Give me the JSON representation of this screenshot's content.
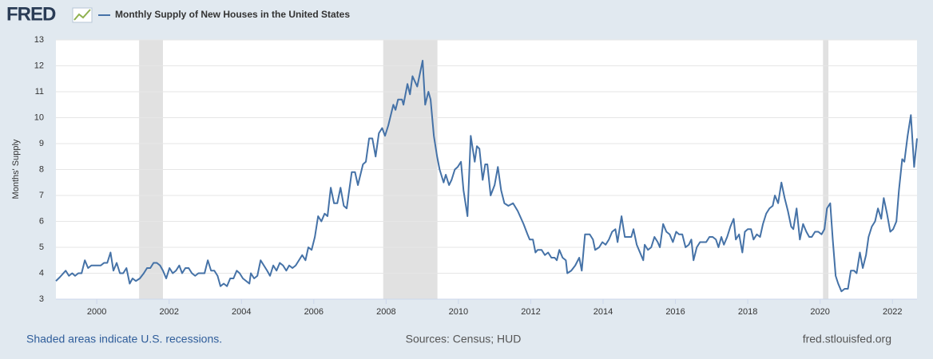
{
  "chart_data": {
    "type": "line",
    "logo": "FRED",
    "y_label": "Months' Supply",
    "note": "Shaded areas indicate U.S. recessions.",
    "source": "Sources: Census; HUD",
    "site": "fred.stlouisfed.org",
    "xlim": [
      1998.87,
      2022.68
    ],
    "xticks": [
      2000,
      2002,
      2004,
      2006,
      2008,
      2010,
      2012,
      2014,
      2016,
      2018,
      2020,
      2022
    ],
    "ylim": [
      3,
      13
    ],
    "yticks": [
      3,
      4,
      5,
      6,
      7,
      8,
      9,
      10,
      11,
      12,
      13
    ],
    "grid": true,
    "recessions": [
      [
        2001.17,
        2001.83
      ],
      [
        2007.92,
        2009.42
      ],
      [
        2020.08,
        2020.23
      ]
    ],
    "recession_color": "#e1e1e1",
    "series": [
      {
        "name": "Monthly Supply of New Houses in the United States",
        "color": "#4572a7",
        "x": [
          1998.87,
          1998.98,
          1999.14,
          1999.23,
          1999.32,
          1999.4,
          1999.49,
          1999.58,
          1999.67,
          1999.76,
          1999.85,
          1999.98,
          2000.11,
          2000.2,
          2000.29,
          2000.38,
          2000.46,
          2000.55,
          2000.64,
          2000.73,
          2000.82,
          2000.91,
          2000.99,
          2001.08,
          2001.19,
          2001.3,
          2001.39,
          2001.48,
          2001.57,
          2001.66,
          2001.75,
          2001.83,
          2001.92,
          2002.01,
          2002.1,
          2002.19,
          2002.28,
          2002.36,
          2002.45,
          2002.54,
          2002.63,
          2002.72,
          2002.81,
          2002.98,
          2003.07,
          2003.16,
          2003.25,
          2003.34,
          2003.42,
          2003.51,
          2003.6,
          2003.69,
          2003.78,
          2003.87,
          2003.95,
          2004.04,
          2004.13,
          2004.22,
          2004.26,
          2004.35,
          2004.44,
          2004.53,
          2004.62,
          2004.71,
          2004.79,
          2004.88,
          2004.97,
          2005.06,
          2005.15,
          2005.24,
          2005.32,
          2005.41,
          2005.5,
          2005.59,
          2005.68,
          2005.77,
          2005.85,
          2005.94,
          2006.03,
          2006.12,
          2006.21,
          2006.3,
          2006.38,
          2006.47,
          2006.56,
          2006.65,
          2006.74,
          2006.83,
          2006.91,
          2007.05,
          2007.14,
          2007.22,
          2007.36,
          2007.44,
          2007.53,
          2007.62,
          2007.71,
          2007.8,
          2007.89,
          2007.97,
          2008.06,
          2008.2,
          2008.26,
          2008.33,
          2008.44,
          2008.48,
          2008.59,
          2008.66,
          2008.73,
          2008.86,
          2009.01,
          2009.08,
          2009.17,
          2009.23,
          2009.32,
          2009.41,
          2009.48,
          2009.59,
          2009.65,
          2009.74,
          2009.81,
          2009.9,
          2009.98,
          2010.07,
          2010.14,
          2010.25,
          2010.34,
          2010.45,
          2010.51,
          2010.58,
          2010.67,
          2010.74,
          2010.8,
          2010.89,
          2011.0,
          2011.09,
          2011.18,
          2011.27,
          2011.38,
          2011.51,
          2011.64,
          2011.8,
          2011.91,
          2011.97,
          2012.06,
          2012.13,
          2012.19,
          2012.3,
          2012.39,
          2012.48,
          2012.57,
          2012.66,
          2012.72,
          2012.79,
          2012.88,
          2012.97,
          2013.01,
          2013.12,
          2013.23,
          2013.34,
          2013.41,
          2013.5,
          2013.63,
          2013.72,
          2013.78,
          2013.89,
          2013.98,
          2014.07,
          2014.16,
          2014.25,
          2014.34,
          2014.4,
          2014.51,
          2014.6,
          2014.69,
          2014.78,
          2014.84,
          2014.93,
          2015.02,
          2015.11,
          2015.15,
          2015.24,
          2015.33,
          2015.42,
          2015.51,
          2015.57,
          2015.66,
          2015.75,
          2015.84,
          2015.93,
          2016.02,
          2016.1,
          2016.19,
          2016.28,
          2016.37,
          2016.44,
          2016.5,
          2016.59,
          2016.68,
          2016.77,
          2016.85,
          2016.94,
          2017.03,
          2017.12,
          2017.19,
          2017.27,
          2017.34,
          2017.43,
          2017.52,
          2017.61,
          2017.67,
          2017.76,
          2017.85,
          2017.92,
          2018.0,
          2018.09,
          2018.16,
          2018.25,
          2018.34,
          2018.42,
          2018.51,
          2018.6,
          2018.69,
          2018.75,
          2018.84,
          2018.93,
          2019.02,
          2019.11,
          2019.2,
          2019.26,
          2019.35,
          2019.44,
          2019.53,
          2019.62,
          2019.7,
          2019.77,
          2019.86,
          2019.95,
          2020.04,
          2020.12,
          2020.19,
          2020.28,
          2020.35,
          2020.43,
          2020.5,
          2020.59,
          2020.68,
          2020.77,
          2020.85,
          2020.94,
          2021.01,
          2021.1,
          2021.18,
          2021.27,
          2021.34,
          2021.43,
          2021.52,
          2021.6,
          2021.69,
          2021.76,
          2021.85,
          2021.94,
          2022.02,
          2022.11,
          2022.18,
          2022.27,
          2022.33,
          2022.42,
          2022.51,
          2022.6,
          2022.68
        ],
        "values": [
          3.7,
          3.85,
          4.1,
          3.9,
          4.0,
          3.9,
          4.0,
          4.0,
          4.5,
          4.2,
          4.3,
          4.3,
          4.3,
          4.4,
          4.4,
          4.8,
          4.1,
          4.4,
          4.0,
          4.0,
          4.2,
          3.6,
          3.8,
          3.7,
          3.8,
          4.0,
          4.2,
          4.2,
          4.4,
          4.4,
          4.3,
          4.1,
          3.8,
          4.2,
          4.0,
          4.1,
          4.3,
          4.0,
          4.2,
          4.2,
          4.0,
          3.9,
          4.0,
          4.0,
          4.5,
          4.1,
          4.1,
          3.9,
          3.5,
          3.6,
          3.5,
          3.8,
          3.8,
          4.1,
          4.0,
          3.8,
          3.7,
          3.6,
          4.0,
          3.8,
          3.9,
          4.5,
          4.3,
          4.1,
          3.9,
          4.3,
          4.1,
          4.4,
          4.3,
          4.1,
          4.3,
          4.2,
          4.3,
          4.5,
          4.7,
          4.5,
          5.0,
          4.9,
          5.4,
          6.2,
          6.0,
          6.3,
          6.2,
          7.3,
          6.7,
          6.7,
          7.3,
          6.6,
          6.5,
          7.9,
          7.9,
          7.4,
          8.2,
          8.3,
          9.2,
          9.2,
          8.5,
          9.4,
          9.6,
          9.3,
          9.7,
          10.5,
          10.3,
          10.7,
          10.7,
          10.5,
          11.3,
          10.9,
          11.6,
          11.2,
          12.2,
          10.5,
          11.0,
          10.7,
          9.3,
          8.5,
          8.0,
          7.5,
          7.8,
          7.4,
          7.6,
          8.0,
          8.1,
          8.3,
          7.2,
          6.2,
          9.3,
          8.3,
          8.9,
          8.8,
          7.6,
          8.2,
          8.2,
          7.0,
          7.4,
          8.1,
          7.2,
          6.7,
          6.6,
          6.7,
          6.4,
          5.9,
          5.5,
          5.3,
          5.3,
          4.8,
          4.9,
          4.9,
          4.7,
          4.8,
          4.6,
          4.6,
          4.5,
          4.9,
          4.6,
          4.5,
          4.0,
          4.1,
          4.3,
          4.6,
          4.1,
          5.5,
          5.5,
          5.3,
          4.9,
          5.0,
          5.2,
          5.1,
          5.3,
          5.6,
          5.7,
          5.2,
          6.2,
          5.4,
          5.4,
          5.4,
          5.7,
          5.1,
          4.8,
          4.5,
          5.1,
          4.9,
          5.0,
          5.4,
          5.2,
          5.0,
          5.9,
          5.6,
          5.5,
          5.2,
          5.6,
          5.5,
          5.5,
          5.0,
          5.1,
          5.3,
          4.5,
          5.0,
          5.2,
          5.2,
          5.2,
          5.4,
          5.4,
          5.3,
          5.0,
          5.4,
          5.1,
          5.4,
          5.8,
          6.1,
          5.3,
          5.5,
          4.8,
          5.6,
          5.7,
          5.7,
          5.3,
          5.5,
          5.4,
          5.9,
          6.3,
          6.5,
          6.6,
          7.0,
          6.7,
          7.5,
          6.9,
          6.4,
          5.8,
          5.7,
          6.5,
          5.3,
          5.9,
          5.6,
          5.4,
          5.4,
          5.6,
          5.6,
          5.5,
          5.7,
          6.5,
          6.7,
          5.3,
          3.9,
          3.6,
          3.3,
          3.4,
          3.4,
          4.1,
          4.1,
          4.0,
          4.8,
          4.2,
          4.7,
          5.4,
          5.8,
          6.0,
          6.5,
          6.1,
          6.9,
          6.3,
          5.6,
          5.7,
          6.0,
          7.2,
          8.4,
          8.3,
          9.3,
          10.1,
          8.1,
          9.2
        ]
      }
    ]
  }
}
